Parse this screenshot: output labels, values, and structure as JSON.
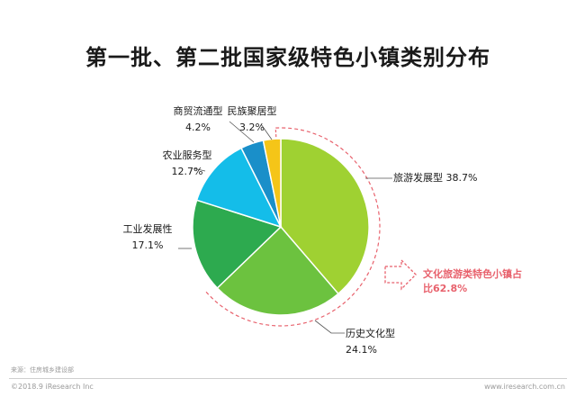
{
  "title": "第一批、第二批国家级特色小镇类别分布",
  "chart_data": {
    "type": "pie",
    "title": "第一批、第二批国家级特色小镇类别分布",
    "series": [
      {
        "name": "旅游发展型",
        "value": 38.7,
        "label": "38.7%",
        "color": "#9fd132"
      },
      {
        "name": "历史文化型",
        "value": 24.1,
        "label": "24.1%",
        "color": "#6cc23f"
      },
      {
        "name": "工业发展性",
        "value": 17.1,
        "label": "17.1%",
        "color": "#2daa4f"
      },
      {
        "name": "农业服务型",
        "value": 12.7,
        "label": "12.7%",
        "color": "#14bde9"
      },
      {
        "name": "商贸流通型",
        "value": 4.2,
        "label": "4.2%",
        "color": "#1a8fc9"
      },
      {
        "name": "民族聚居型",
        "value": 3.2,
        "label": "3.2%",
        "color": "#f5c518"
      }
    ],
    "annotation": {
      "line1": "文化旅游类特色小镇占",
      "line2": "比62.8%",
      "color": "#e8626d"
    }
  },
  "footer": {
    "source": "来源：住房城乡建设部",
    "copyright": "©2018.9 iResearch Inc",
    "website": "www.iresearch.com.cn"
  }
}
